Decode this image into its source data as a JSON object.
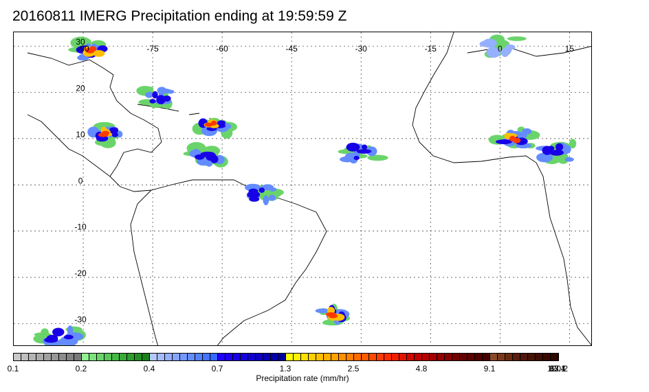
{
  "title": "20160811 IMERG Precipitation ending at 19:59:59 Z",
  "map": {
    "lon_labels": [
      "-90",
      "-75",
      "-60",
      "-45",
      "-30",
      "-15",
      "0",
      "15"
    ],
    "lon_values": [
      -90,
      -75,
      -60,
      -45,
      -30,
      -15,
      0,
      15
    ],
    "lat_labels": [
      "30",
      "20",
      "10",
      "0",
      "-10",
      "-20",
      "-30"
    ],
    "lat_values": [
      30,
      20,
      10,
      0,
      -10,
      -20,
      -30
    ],
    "lon_range": [
      -105,
      20
    ],
    "lat_range": [
      -35,
      33
    ],
    "gridlines": "dotted",
    "precip_areas": [
      {
        "name": "gulf-of-mexico-north",
        "lon": -88,
        "lat": 29,
        "level": "heavy"
      },
      {
        "name": "caribbean",
        "lon": -73,
        "lat": 19,
        "level": "moderate"
      },
      {
        "name": "central-america",
        "lon": -85,
        "lat": 11,
        "level": "heavy"
      },
      {
        "name": "atlantic-east-caribbean",
        "lon": -62,
        "lat": 13,
        "level": "heavy"
      },
      {
        "name": "south-america-north",
        "lon": -63,
        "lat": 6,
        "level": "moderate"
      },
      {
        "name": "itcz-atlantic",
        "lon": -30,
        "lat": 7,
        "level": "moderate"
      },
      {
        "name": "west-africa",
        "lon": 3,
        "lat": 10,
        "level": "heavy"
      },
      {
        "name": "sahel-east",
        "lon": 12,
        "lat": 7,
        "level": "moderate"
      },
      {
        "name": "west-europe-iberia",
        "lon": 0,
        "lat": 30,
        "level": "light"
      },
      {
        "name": "amazon-east",
        "lon": -52,
        "lat": -2,
        "level": "moderate"
      },
      {
        "name": "south-atlantic-front",
        "lon": -36,
        "lat": -28,
        "level": "heavy"
      },
      {
        "name": "chile-coast",
        "lon": -95,
        "lat": -33,
        "level": "moderate"
      }
    ]
  },
  "colorbar": {
    "tick_labels": [
      "0.1",
      "0.2",
      "0.4",
      "0.7",
      "1.3",
      "2.5",
      "4.8",
      "9.1",
      "17.4",
      "33.1",
      "63.1",
      "120.2"
    ],
    "label": "Precipitation rate (mm/hr)",
    "colors": [
      "#c8c8c8",
      "#bebebe",
      "#b4b4b4",
      "#aaaaaa",
      "#a0a0a0",
      "#969696",
      "#8c8c8c",
      "#828282",
      "#787878",
      "#8ff08f",
      "#7ce27c",
      "#6ad46a",
      "#58c658",
      "#46b846",
      "#38aa38",
      "#2e9c2e",
      "#248e24",
      "#1a801a",
      "#b4c8ff",
      "#a4bcff",
      "#94b0ff",
      "#84a4ff",
      "#7498ff",
      "#648cff",
      "#5480ff",
      "#4474ff",
      "#3468ff",
      "#2000ff",
      "#1c00f2",
      "#1800e6",
      "#1400da",
      "#1000ce",
      "#0c00c2",
      "#0800b6",
      "#0400aa",
      "#00009e",
      "#ffff00",
      "#ffef00",
      "#ffdf00",
      "#ffcf00",
      "#ffbf00",
      "#ffaf00",
      "#ff9f00",
      "#ff8f00",
      "#ff7f00",
      "#ff6a00",
      "#ff5a00",
      "#ff4a00",
      "#ff3a00",
      "#ff2a00",
      "#f01e00",
      "#e01400",
      "#d00a00",
      "#c00000",
      "#b40000",
      "#a40000",
      "#940000",
      "#840000",
      "#740000",
      "#640000",
      "#5a0000",
      "#500000",
      "#460000",
      "#8a4a2a",
      "#7a3a1a",
      "#6a2a12",
      "#5a1e0e",
      "#4e160a",
      "#461206",
      "#3e0e04",
      "#380a02",
      "#300800"
    ]
  }
}
